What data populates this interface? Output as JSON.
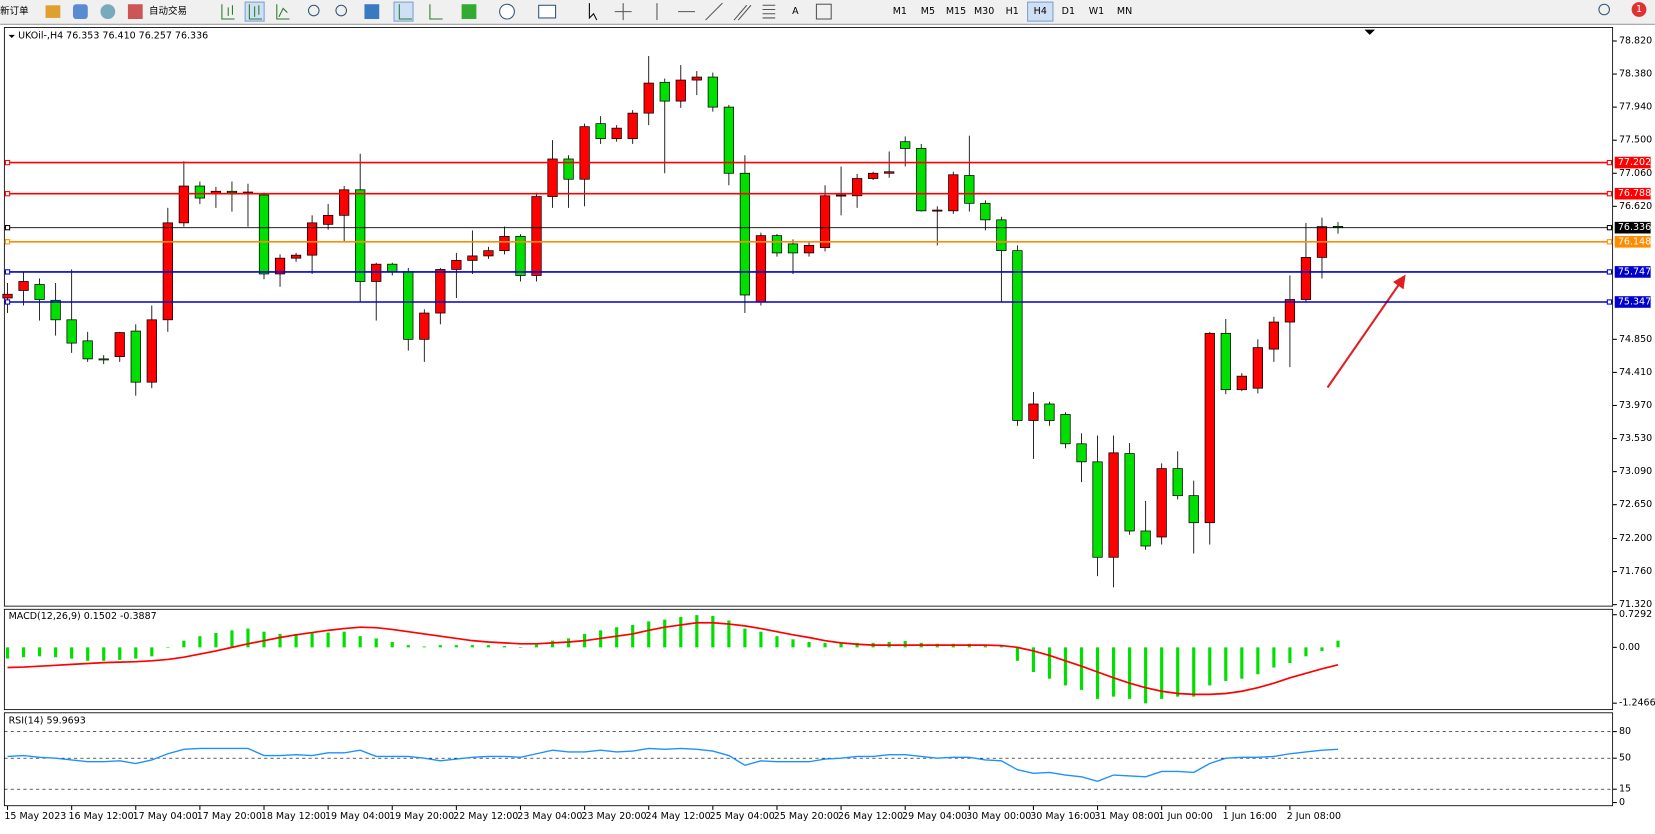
{
  "toolbar": {
    "new_order": "新订单",
    "auto_trading": "自动交易",
    "text_tool": "A",
    "timeframes": [
      "M1",
      "M5",
      "M15",
      "M30",
      "H1",
      "H4",
      "D1",
      "W1",
      "MN"
    ],
    "active_timeframe": "H4",
    "notification_count": 1
  },
  "chart_data": [
    {
      "type": "candlestick",
      "title": "UKOil-,H4 76.353 76.410 76.257 76.336",
      "categories": [
        "15 May 2023",
        null,
        null,
        null,
        "16 May 12:00",
        null,
        null,
        null,
        "17 May 04:00",
        null,
        null,
        null,
        "17 May 20:00",
        null,
        null,
        null,
        "18 May 12:00",
        null,
        null,
        null,
        "19 May 04:00",
        null,
        null,
        null,
        "19 May 20:00",
        null,
        null,
        null,
        "22 May 12:00",
        null,
        null,
        null,
        "23 May 04:00",
        null,
        null,
        null,
        "23 May 20:00",
        null,
        null,
        null,
        "24 May 12:00",
        null,
        null,
        null,
        "25 May 04:00",
        null,
        null,
        null,
        "25 May 20:00",
        null,
        null,
        null,
        "26 May 12:00",
        null,
        null,
        null,
        "29 May 04:00",
        null,
        null,
        null,
        "30 May 00:00",
        null,
        null,
        null,
        "30 May 16:00",
        null,
        null,
        null,
        "31 May 08:00",
        null,
        null,
        null,
        "1 Jun 00:00",
        null,
        null,
        null,
        "1 Jun 16:00",
        null,
        null,
        null,
        "2 Jun 08:00",
        null,
        null,
        null
      ],
      "open": [
        75.4,
        75.5,
        75.58,
        75.37,
        75.11,
        74.83,
        74.59,
        74.62,
        74.96,
        74.28,
        75.11,
        76.4,
        76.89,
        76.79,
        76.82,
        76.8,
        76.77,
        75.72,
        75.93,
        75.97,
        76.38,
        76.5,
        76.84,
        75.62,
        75.85,
        75.75,
        74.85,
        75.2,
        75.78,
        75.9,
        75.96,
        76.03,
        76.22,
        75.7,
        76.75,
        77.25,
        76.98,
        77.72,
        77.52,
        77.52,
        77.86,
        78.27,
        78.02,
        78.3,
        78.34,
        77.94,
        77.06,
        75.35,
        76.23,
        76.12,
        76.0,
        76.07,
        76.76,
        76.76,
        76.99,
        77.06,
        77.48,
        77.39,
        76.56,
        76.56,
        77.03,
        76.66,
        76.44,
        76.03,
        73.77,
        73.99,
        73.85,
        73.46,
        73.22,
        71.95,
        73.33,
        72.3,
        72.22,
        73.13,
        72.77,
        72.41,
        74.93,
        74.18,
        74.2,
        74.72,
        75.08,
        75.38,
        75.94,
        76.353
      ],
      "high": [
        75.6,
        75.75,
        75.66,
        75.6,
        75.78,
        74.95,
        74.64,
        74.95,
        75.05,
        75.3,
        76.6,
        77.22,
        76.95,
        76.88,
        76.95,
        76.92,
        76.8,
        75.98,
        76.0,
        76.5,
        76.65,
        76.89,
        77.32,
        75.87,
        75.87,
        75.8,
        75.25,
        75.8,
        76.0,
        76.3,
        76.08,
        76.35,
        76.25,
        76.8,
        77.5,
        77.3,
        77.72,
        77.82,
        77.7,
        77.9,
        78.62,
        78.32,
        78.5,
        78.42,
        78.4,
        77.97,
        77.3,
        76.27,
        76.25,
        76.18,
        76.15,
        76.9,
        77.15,
        77.05,
        77.08,
        77.35,
        77.55,
        77.45,
        76.62,
        77.08,
        77.56,
        76.7,
        76.48,
        76.1,
        74.15,
        74.02,
        73.88,
        73.6,
        73.57,
        73.57,
        73.47,
        72.7,
        73.2,
        73.36,
        72.97,
        74.95,
        75.12,
        74.4,
        74.85,
        75.15,
        75.7,
        76.4,
        76.47,
        76.41
      ],
      "low": [
        75.2,
        75.3,
        75.1,
        74.9,
        74.67,
        74.55,
        74.52,
        74.55,
        74.1,
        74.2,
        74.95,
        76.35,
        76.65,
        76.6,
        76.55,
        76.35,
        75.65,
        75.55,
        75.88,
        75.72,
        76.31,
        76.15,
        75.35,
        75.1,
        75.7,
        74.7,
        74.55,
        75.05,
        75.4,
        75.72,
        75.92,
        75.98,
        75.62,
        75.62,
        76.6,
        76.6,
        76.62,
        77.45,
        77.48,
        77.45,
        77.7,
        77.06,
        77.93,
        78.1,
        77.88,
        76.9,
        75.2,
        75.3,
        75.95,
        75.72,
        75.95,
        76.02,
        76.5,
        76.6,
        76.97,
        77.0,
        77.15,
        76.55,
        76.1,
        76.52,
        76.55,
        76.3,
        75.35,
        73.7,
        73.26,
        73.7,
        73.4,
        72.95,
        71.7,
        71.55,
        72.25,
        72.05,
        72.12,
        72.72,
        72.0,
        72.12,
        74.12,
        74.16,
        74.13,
        74.55,
        74.48,
        75.34,
        75.66,
        76.257
      ],
      "close": [
        75.45,
        75.62,
        75.38,
        75.11,
        74.8,
        74.59,
        74.58,
        74.94,
        74.28,
        75.11,
        76.4,
        76.89,
        76.73,
        76.82,
        76.8,
        76.81,
        75.72,
        75.93,
        75.97,
        76.4,
        76.5,
        76.84,
        75.62,
        75.85,
        75.75,
        74.85,
        75.2,
        75.78,
        75.9,
        75.96,
        76.03,
        76.22,
        75.7,
        76.75,
        77.25,
        76.98,
        77.68,
        77.52,
        77.66,
        77.86,
        78.26,
        78.02,
        78.3,
        78.34,
        77.94,
        77.06,
        75.44,
        76.23,
        76.0,
        76.0,
        76.1,
        76.76,
        76.77,
        76.99,
        77.06,
        77.08,
        77.39,
        76.56,
        76.57,
        77.04,
        76.66,
        76.44,
        76.03,
        73.77,
        73.99,
        73.77,
        73.46,
        73.22,
        71.95,
        73.34,
        72.3,
        72.1,
        73.13,
        72.77,
        72.41,
        74.93,
        74.18,
        74.36,
        74.74,
        75.08,
        75.38,
        75.94,
        76.35,
        76.336
      ],
      "up_color": "#ff0000",
      "down_color": "#00e000",
      "ylim": [
        71.3,
        79.0
      ],
      "yticks": [
        {
          "value": 78.82,
          "label": "78.820"
        },
        {
          "value": 78.38,
          "label": "78.380"
        },
        {
          "value": 77.94,
          "label": "77.940"
        },
        {
          "value": 77.5,
          "label": "77.500"
        },
        {
          "value": 77.06,
          "label": "77.060"
        },
        {
          "value": 76.62,
          "label": "76.620"
        },
        {
          "value": 74.85,
          "label": "74.850"
        },
        {
          "value": 74.41,
          "label": "74.410"
        },
        {
          "value": 73.97,
          "label": "73.970"
        },
        {
          "value": 73.53,
          "label": "73.530"
        },
        {
          "value": 73.09,
          "label": "73.090"
        },
        {
          "value": 72.65,
          "label": "72.650"
        },
        {
          "value": 72.2,
          "label": "72.200"
        },
        {
          "value": 71.76,
          "label": "71.760"
        },
        {
          "value": 71.32,
          "label": "71.320"
        }
      ],
      "levels": [
        {
          "value": 77.202,
          "color": "#ff0000"
        },
        {
          "value": 76.788,
          "color": "#ff0000"
        },
        {
          "value": 76.336,
          "color": "#000000"
        },
        {
          "value": 76.148,
          "color": "#ff8c00"
        },
        {
          "value": 75.747,
          "color": "#0000cd"
        },
        {
          "value": 75.347,
          "color": "#0000cd"
        }
      ],
      "grid": false
    },
    {
      "type": "macd",
      "title": "MACD(12,26,9) 0.1502 -0.3887",
      "series": [
        {
          "color": "#00e000",
          "values": [
            -0.25,
            -0.22,
            -0.2,
            -0.22,
            -0.25,
            -0.3,
            -0.3,
            -0.28,
            -0.25,
            -0.2,
            0.0,
            0.15,
            0.25,
            0.32,
            0.38,
            0.42,
            0.35,
            0.3,
            0.3,
            0.32,
            0.33,
            0.35,
            0.25,
            0.2,
            0.12,
            0.05,
            0.02,
            0.05,
            0.05,
            0.05,
            0.05,
            0.03,
            0.0,
            0.06,
            0.15,
            0.2,
            0.3,
            0.38,
            0.45,
            0.5,
            0.58,
            0.62,
            0.68,
            0.72,
            0.7,
            0.6,
            0.42,
            0.35,
            0.25,
            0.18,
            0.12,
            0.1,
            0.1,
            0.1,
            0.1,
            0.12,
            0.14,
            0.1,
            0.08,
            0.08,
            0.08,
            0.06,
            0.04,
            -0.3,
            -0.55,
            -0.7,
            -0.85,
            -0.95,
            -1.15,
            -1.1,
            -1.15,
            -1.25,
            -1.15,
            -1.1,
            -1.1,
            -0.85,
            -0.75,
            -0.7,
            -0.6,
            -0.45,
            -0.35,
            -0.2,
            -0.08,
            0.15
          ]
        },
        {
          "color": "#ff0000",
          "values": [
            -0.45,
            -0.44,
            -0.42,
            -0.4,
            -0.38,
            -0.36,
            -0.34,
            -0.33,
            -0.32,
            -0.3,
            -0.27,
            -0.22,
            -0.15,
            -0.08,
            0.0,
            0.08,
            0.15,
            0.22,
            0.28,
            0.33,
            0.38,
            0.42,
            0.45,
            0.44,
            0.4,
            0.35,
            0.3,
            0.25,
            0.2,
            0.15,
            0.12,
            0.1,
            0.08,
            0.08,
            0.1,
            0.12,
            0.15,
            0.2,
            0.25,
            0.3,
            0.38,
            0.45,
            0.5,
            0.55,
            0.55,
            0.52,
            0.48,
            0.42,
            0.35,
            0.28,
            0.22,
            0.15,
            0.1,
            0.07,
            0.05,
            0.05,
            0.05,
            0.05,
            0.05,
            0.05,
            0.05,
            0.05,
            0.04,
            0.0,
            -0.08,
            -0.18,
            -0.3,
            -0.42,
            -0.55,
            -0.68,
            -0.8,
            -0.9,
            -0.98,
            -1.03,
            -1.05,
            -1.05,
            -1.03,
            -0.98,
            -0.9,
            -0.8,
            -0.68,
            -0.58,
            -0.48,
            -0.3887
          ]
        }
      ],
      "ylim": [
        -1.39,
        0.85
      ],
      "yticks": [
        0.7292,
        {
          "value": 0,
          "label": "0.00"
        },
        -1.2466
      ]
    },
    {
      "type": "line",
      "title": "RSI(14) 59.9693",
      "color": "#1e90ff",
      "values": [
        52,
        53,
        51,
        50,
        48,
        46,
        46,
        47,
        44,
        48,
        55,
        60,
        61,
        61,
        61,
        61,
        53,
        53,
        54,
        53,
        56,
        56,
        59,
        52,
        52,
        52,
        50,
        47,
        49,
        51,
        52,
        52,
        51,
        55,
        59,
        57,
        57,
        59,
        57,
        58,
        61,
        60,
        61,
        60,
        58,
        53,
        42,
        47,
        46,
        46,
        46,
        49,
        50,
        52,
        52,
        54,
        54,
        52,
        50,
        51,
        51,
        48,
        47,
        37,
        33,
        34,
        31,
        29,
        24,
        31,
        30,
        29,
        35,
        35,
        34,
        44,
        50,
        51,
        51,
        52,
        55,
        57,
        59,
        59.9693
      ],
      "ylim": [
        0,
        100
      ],
      "yticks": [
        80,
        50,
        15,
        0
      ],
      "grid": true
    }
  ]
}
